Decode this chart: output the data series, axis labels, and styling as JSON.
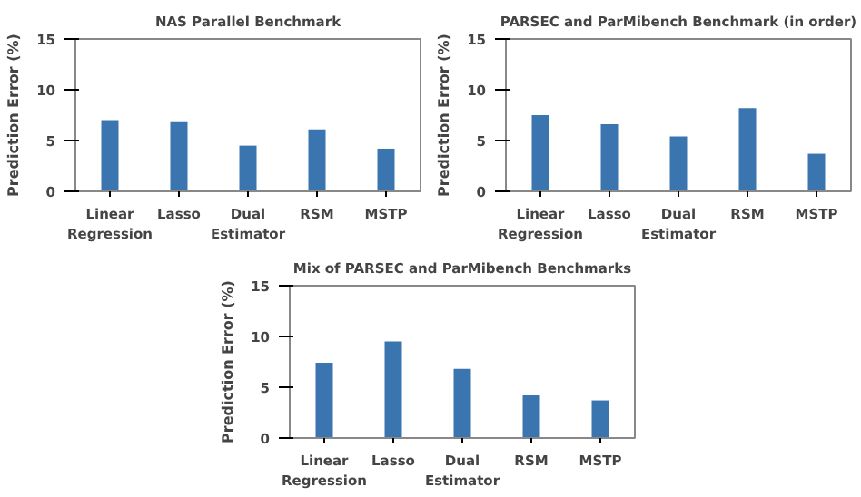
{
  "chart_data": [
    {
      "type": "bar",
      "title": "NAS Parallel Benchmark",
      "ylabel": "Prediction Error (%)",
      "categories": [
        "Linear Regression",
        "Lasso",
        "Dual Estimator",
        "RSM",
        "MSTP"
      ],
      "values": [
        7.0,
        6.9,
        4.5,
        6.1,
        4.2
      ],
      "color": "#3b75af",
      "ylim": [
        0,
        15
      ],
      "yticks": [
        0,
        5,
        10,
        15
      ],
      "grid": false
    },
    {
      "type": "bar",
      "title": "PARSEC and ParMibench Benchmark (in order)",
      "ylabel": "Prediction Error (%)",
      "categories": [
        "Linear Regression",
        "Lasso",
        "Dual Estimator",
        "RSM",
        "MSTP"
      ],
      "values": [
        7.5,
        6.6,
        5.4,
        8.2,
        3.7
      ],
      "color": "#3b75af",
      "ylim": [
        0,
        15
      ],
      "yticks": [
        0,
        5,
        10,
        15
      ],
      "grid": false
    },
    {
      "type": "bar",
      "title": "Mix of PARSEC and ParMibench Benchmarks",
      "ylabel": "Prediction Error (%)",
      "categories": [
        "Linear Regression",
        "Lasso",
        "Dual Estimator",
        "RSM",
        "MSTP"
      ],
      "values": [
        7.4,
        9.5,
        6.8,
        4.2,
        3.7
      ],
      "color": "#3b75af",
      "ylim": [
        0,
        15
      ],
      "yticks": [
        0,
        5,
        10,
        15
      ],
      "grid": false
    }
  ]
}
